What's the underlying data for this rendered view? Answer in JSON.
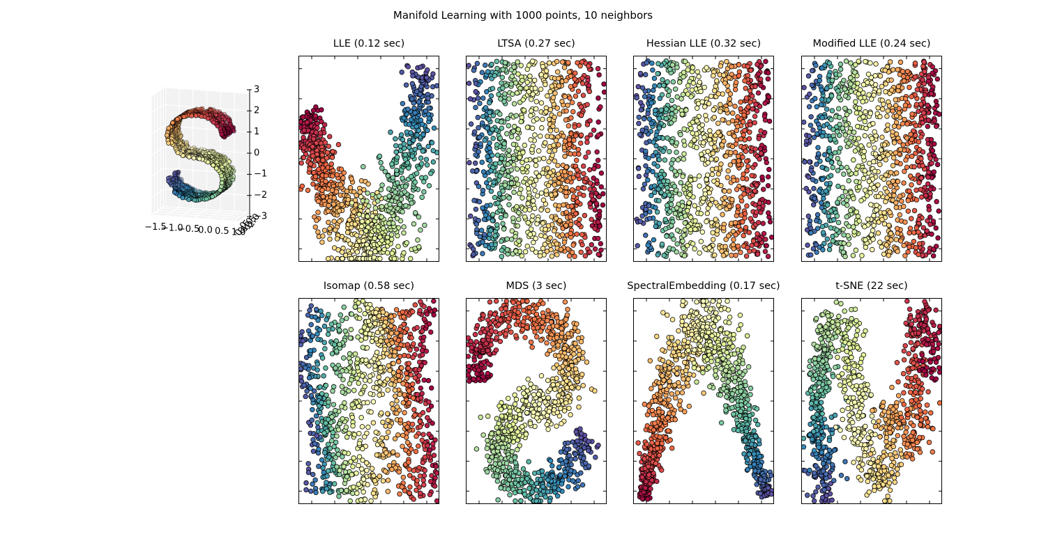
{
  "chart_data": {
    "type": "scatter",
    "title": "Manifold Learning with 1000 points, 10 neighbors",
    "n_points": 1000,
    "n_neighbors": 10,
    "legend": "none",
    "grid": false,
    "tick_labels_hidden_on_embeddings": true,
    "colormap": {
      "name": "Spectral",
      "stops": [
        [
          0.0,
          "#9e0142"
        ],
        [
          0.1,
          "#d53e4f"
        ],
        [
          0.2,
          "#f46d43"
        ],
        [
          0.3,
          "#fdae61"
        ],
        [
          0.4,
          "#fee08b"
        ],
        [
          0.5,
          "#ffffbf"
        ],
        [
          0.6,
          "#e6f598"
        ],
        [
          0.7,
          "#abdda4"
        ],
        [
          0.8,
          "#66c2a5"
        ],
        [
          0.9,
          "#3288bd"
        ],
        [
          1.0,
          "#5e4fa2"
        ]
      ]
    },
    "point_style": {
      "radius": 3.3,
      "edge_color": "#000000",
      "edge_width": 1
    },
    "input_3d": {
      "name": "S-curve",
      "points": 1000,
      "view": {
        "elev": 4,
        "azim": -72
      },
      "tick_labels": {
        "x": [
          "-1.5",
          "-1.0",
          "-0.5",
          "0.0",
          "0.5",
          "1.0"
        ],
        "y": [
          "0.0",
          "0.5",
          "1.0",
          "1.5",
          "2.0"
        ],
        "z": [
          "3",
          "2",
          "1",
          "0",
          "-1",
          "-2",
          "-3"
        ]
      },
      "pane_color": "#f2f2f2"
    },
    "subplots": [
      {
        "id": "lle",
        "title": "LLE (0.12 sec)",
        "shape": "path",
        "reverse_colors": false,
        "seed": 101,
        "path": [
          [
            0.065,
            0.72
          ],
          [
            0.09,
            0.62
          ],
          [
            0.13,
            0.52
          ],
          [
            0.18,
            0.42
          ],
          [
            0.24,
            0.33
          ],
          [
            0.31,
            0.25
          ],
          [
            0.38,
            0.16
          ],
          [
            0.46,
            0.08
          ],
          [
            0.53,
            0.05
          ],
          [
            0.6,
            0.11
          ],
          [
            0.66,
            0.21
          ],
          [
            0.72,
            0.33
          ],
          [
            0.78,
            0.47
          ],
          [
            0.83,
            0.62
          ],
          [
            0.86,
            0.77
          ],
          [
            0.89,
            0.93
          ]
        ],
        "band": {
          "base": 0.028,
          "peak": 0.085,
          "center": 0.52,
          "sigma": 0.27
        },
        "jitter": 0.012
      },
      {
        "id": "ltsa",
        "title": "LTSA (0.27 sec)",
        "shape": "rect",
        "reverse_colors": true,
        "seed": 202
      },
      {
        "id": "hessian_lle",
        "title": "Hessian LLE (0.32 sec)",
        "shape": "rect",
        "reverse_colors": true,
        "seed": 303
      },
      {
        "id": "modified_lle",
        "title": "Modified LLE (0.24 sec)",
        "shape": "rect",
        "reverse_colors": true,
        "seed": 404
      },
      {
        "id": "isomap",
        "title": "Isomap (0.58 sec)",
        "shape": "rect_wavy",
        "reverse_colors": true,
        "seed": 505
      },
      {
        "id": "mds",
        "title": "MDS (3 sec)",
        "shape": "path",
        "reverse_colors": false,
        "seed": 606,
        "path": [
          [
            0.09,
            0.6
          ],
          [
            0.1,
            0.76
          ],
          [
            0.22,
            0.88
          ],
          [
            0.42,
            0.92
          ],
          [
            0.61,
            0.87
          ],
          [
            0.72,
            0.77
          ],
          [
            0.76,
            0.63
          ],
          [
            0.68,
            0.52
          ],
          [
            0.53,
            0.48
          ],
          [
            0.37,
            0.44
          ],
          [
            0.26,
            0.36
          ],
          [
            0.22,
            0.25
          ],
          [
            0.29,
            0.13
          ],
          [
            0.44,
            0.07
          ],
          [
            0.61,
            0.09
          ],
          [
            0.76,
            0.19
          ],
          [
            0.86,
            0.33
          ]
        ],
        "band": {
          "base": 0.045,
          "peak": 0.01,
          "center": 0.5,
          "sigma": 0.5
        },
        "jitter": 0.012
      },
      {
        "id": "spectral_embedding",
        "title": "SpectralEmbedding (0.17 sec)",
        "shape": "path",
        "reverse_colors": false,
        "seed": 707,
        "path": [
          [
            0.07,
            0.03
          ],
          [
            0.1,
            0.14
          ],
          [
            0.14,
            0.27
          ],
          [
            0.2,
            0.44
          ],
          [
            0.28,
            0.61
          ],
          [
            0.38,
            0.77
          ],
          [
            0.5,
            0.9
          ],
          [
            0.6,
            0.79
          ],
          [
            0.67,
            0.65
          ],
          [
            0.74,
            0.5
          ],
          [
            0.81,
            0.34
          ],
          [
            0.89,
            0.17
          ],
          [
            0.95,
            0.04
          ]
        ],
        "band": {
          "base": 0.012,
          "peak": 0.075,
          "center": 0.5,
          "sigma": 0.23
        },
        "jitter": 0.008
      },
      {
        "id": "tsne",
        "title": "t-SNE (22 sec)",
        "shape": "path",
        "reverse_colors": true,
        "seed": 808,
        "path": [
          [
            0.2,
            0.05
          ],
          [
            0.09,
            0.14
          ],
          [
            0.2,
            0.22
          ],
          [
            0.08,
            0.3
          ],
          [
            0.17,
            0.4
          ],
          [
            0.07,
            0.5
          ],
          [
            0.18,
            0.57
          ],
          [
            0.1,
            0.68
          ],
          [
            0.2,
            0.76
          ],
          [
            0.14,
            0.85
          ],
          [
            0.28,
            0.88
          ],
          [
            0.38,
            0.78
          ],
          [
            0.33,
            0.62
          ],
          [
            0.42,
            0.5
          ],
          [
            0.36,
            0.35
          ],
          [
            0.48,
            0.25
          ],
          [
            0.5,
            0.12
          ],
          [
            0.6,
            0.1
          ],
          [
            0.64,
            0.25
          ],
          [
            0.58,
            0.42
          ],
          [
            0.7,
            0.45
          ],
          [
            0.78,
            0.28
          ],
          [
            0.85,
            0.38
          ],
          [
            0.78,
            0.55
          ],
          [
            0.83,
            0.67
          ],
          [
            0.78,
            0.83
          ],
          [
            0.87,
            0.93
          ],
          [
            0.94,
            0.8
          ],
          [
            0.89,
            0.62
          ]
        ],
        "band": {
          "base": 0.042,
          "peak": 0.008,
          "center": 0.5,
          "sigma": 0.5
        },
        "jitter": 0.014
      }
    ]
  }
}
